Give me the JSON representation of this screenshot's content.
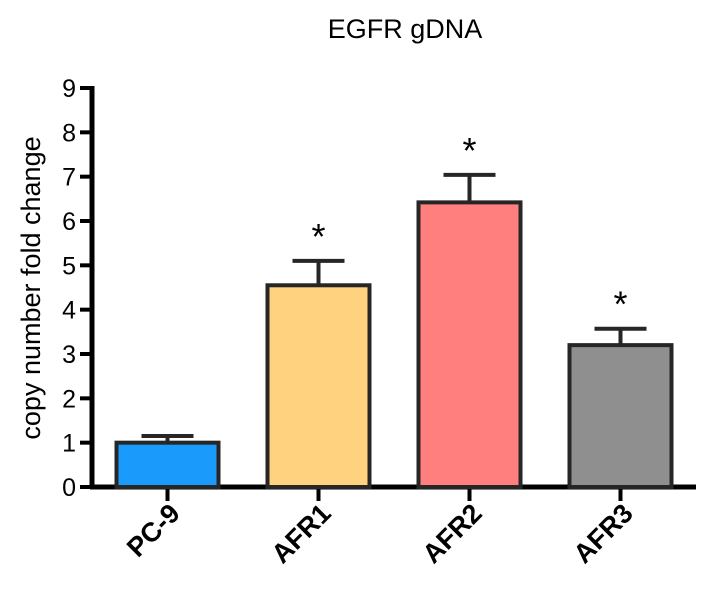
{
  "chart_data": {
    "type": "bar",
    "title": "EGFR gDNA",
    "xlabel": "",
    "ylabel": "copy number fold change",
    "ylim": [
      0,
      9
    ],
    "yticks": [
      "0",
      "1",
      "2",
      "3",
      "4",
      "5",
      "6",
      "7",
      "8",
      "9"
    ],
    "categories": [
      "PC-9",
      "AFR1",
      "AFR2",
      "AFR3"
    ],
    "values": [
      1.0,
      4.55,
      6.42,
      3.2
    ],
    "errors": [
      0.15,
      0.55,
      0.62,
      0.37
    ],
    "significance": [
      "",
      "*",
      "*",
      "*"
    ],
    "colors": [
      "#1a9bfc",
      "#ffd27f",
      "#ff7f7f",
      "#8f8f8f"
    ],
    "edge_color": "#262626",
    "grid": false,
    "legend": "none"
  }
}
